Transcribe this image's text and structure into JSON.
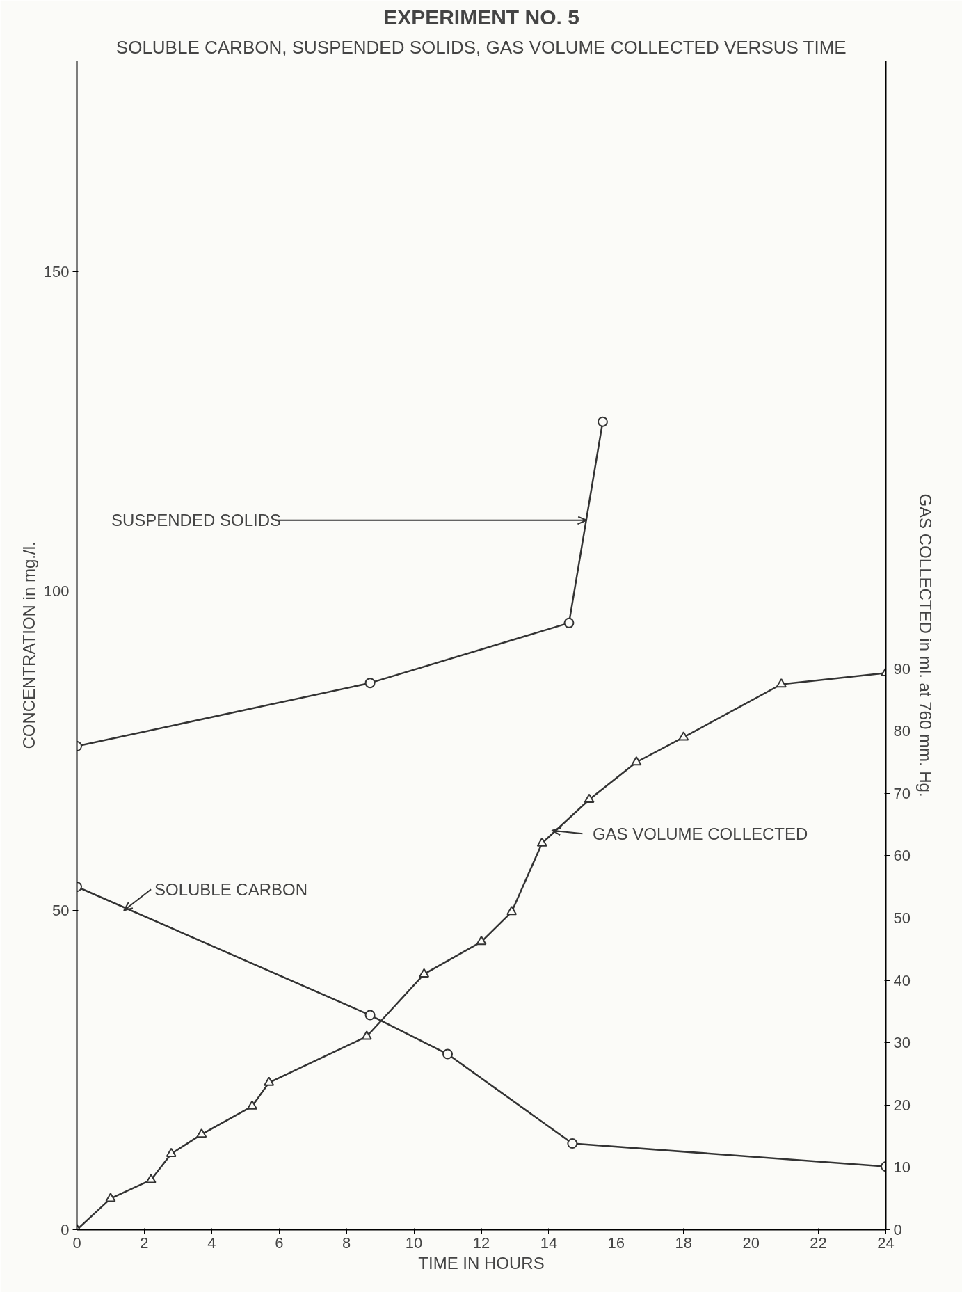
{
  "chart_data": {
    "type": "line",
    "title": "EXPERIMENT NO. 5",
    "subtitle": "SOLUBLE CARBON, SUSPENDED SOLIDS, GAS VOLUME COLLECTED VERSUS TIME",
    "xlabel": "TIME IN HOURS",
    "ylabel": "CONCENTRATION in mg./l.",
    "y2label": "GAS COLLECTED in ml. at 760 mm. Hg.",
    "xlim": [
      0,
      24
    ],
    "xticks": [
      0,
      2,
      4,
      6,
      8,
      10,
      12,
      14,
      16,
      18,
      20,
      22,
      24
    ],
    "ylim": [
      0,
      183
    ],
    "yticks": [
      0,
      50,
      100,
      150
    ],
    "y2lim": [
      0,
      187.5
    ],
    "y2ticks": [
      0,
      10,
      20,
      30,
      40,
      50,
      60,
      70,
      80,
      90
    ],
    "grid": false,
    "line_style": "solid",
    "series": [
      {
        "color": "#333333",
        "marker": "circle",
        "x": [
          0,
          8.7,
          14.6,
          15.6
        ],
        "values": [
          75.7,
          85.6,
          95,
          126.5
        ]
      },
      {
        "color": "#333333",
        "marker": "circle",
        "x": [
          0,
          8.7,
          11,
          14.7,
          24
        ],
        "values": [
          53.7,
          33.6,
          27.5,
          13.5,
          9.9
        ]
      },
      {
        "color": "#333333",
        "marker": "triangle",
        "axis": "y2",
        "x": [
          0,
          1.0,
          2.2,
          2.8,
          3.7,
          5.2,
          5.7,
          8.6,
          10.3,
          12,
          12.9,
          13.8,
          15.2,
          16.6,
          18,
          20.9,
          24
        ],
        "values": [
          0,
          5,
          8,
          12.2,
          15.3,
          19.8,
          23.6,
          31,
          41,
          46.2,
          51,
          62,
          69,
          75,
          79,
          87.5,
          89.3
        ]
      }
    ],
    "annotations": [
      "SUSPENDED SOLIDS",
      {
        "text": "SOLUBLE CARBON",
        "x": 1.4,
        "y": 50
      },
      {
        "text": "GAS VOLUME COLLECTED",
        "x": 14.1,
        "y": 62.5
      }
    ]
  }
}
